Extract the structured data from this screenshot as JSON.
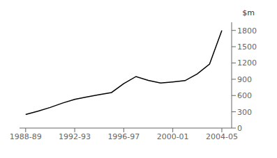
{
  "chart_data": {
    "type": "line",
    "x": [
      1988,
      1989,
      1990,
      1991,
      1992,
      1993,
      1994,
      1995,
      1996,
      1997,
      1998,
      1999,
      2000,
      2001,
      2002,
      2003,
      2004
    ],
    "values": [
      250,
      310,
      380,
      460,
      530,
      575,
      615,
      655,
      820,
      950,
      880,
      830,
      850,
      875,
      1000,
      1180,
      1800
    ],
    "color": "#000000",
    "xlim": [
      1987.5,
      2004.8
    ],
    "xticks": [
      {
        "value": 1988,
        "label": "1988-89"
      },
      {
        "value": 1992,
        "label": "1992-93"
      },
      {
        "value": 1996,
        "label": "1996-97"
      },
      {
        "value": 2000,
        "label": "2000-01"
      },
      {
        "value": 2004,
        "label": "2004-05"
      }
    ],
    "ylim": [
      0,
      1950
    ],
    "yticks": [
      0,
      300,
      600,
      900,
      1200,
      1500,
      1800
    ],
    "ylabel": "$m",
    "grid": false
  }
}
